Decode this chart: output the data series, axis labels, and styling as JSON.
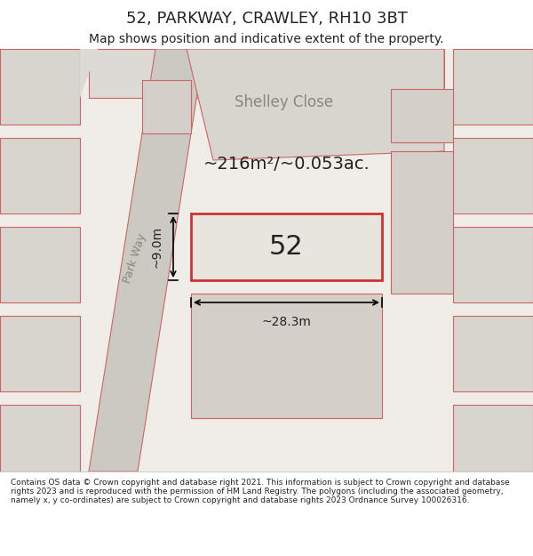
{
  "title": "52, PARKWAY, CRAWLEY, RH10 3BT",
  "subtitle": "Map shows position and indicative extent of the property.",
  "footer": "Contains OS data © Crown copyright and database right 2021. This information is subject to Crown copyright and database rights 2023 and is reproduced with the permission of HM Land Registry. The polygons (including the associated geometry, namely x, y co-ordinates) are subject to Crown copyright and database rights 2023 Ordnance Survey 100026316.",
  "bg_color": "#f0ede8",
  "map_bg": "#e8e4de",
  "road_color": "#d4cdc4",
  "plot_fill": "#e8e4de",
  "plot_outline": "#cc3333",
  "building_fill": "#d4cdc4",
  "building_outline": "#cc6666",
  "text_color": "#222222",
  "measurement_text": "~216m²/~0.053ac.",
  "width_label": "~28.3m",
  "height_label": "~9.0m",
  "property_number": "52",
  "road_label_1": "Park Way",
  "road_label_2": "Park Way",
  "close_label": "Shelley Close"
}
